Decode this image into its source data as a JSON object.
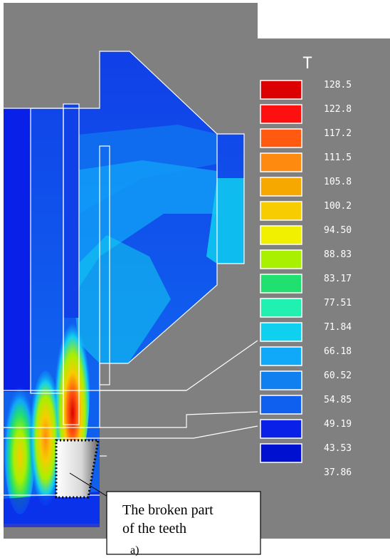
{
  "figure": {
    "caption": "a)",
    "background_color": "#808080",
    "contour_outline_color": "#ffffff"
  },
  "legend": {
    "title": "T",
    "entries": [
      {
        "value": "128.5",
        "color": "#dc0000"
      },
      {
        "value": "122.8",
        "color": "#ff1010"
      },
      {
        "value": "117.2",
        "color": "#ff5a10"
      },
      {
        "value": "111.5",
        "color": "#ff8a10"
      },
      {
        "value": "105.8",
        "color": "#f7a800"
      },
      {
        "value": "100.2",
        "color": "#f7cc00"
      },
      {
        "value": "94.50",
        "color": "#f0f000"
      },
      {
        "value": "88.83",
        "color": "#a8f000"
      },
      {
        "value": "83.17",
        "color": "#20e070"
      },
      {
        "value": "77.51",
        "color": "#20f0b0"
      },
      {
        "value": "71.84",
        "color": "#10d0f0"
      },
      {
        "value": "66.18",
        "color": "#10a8f8"
      },
      {
        "value": "60.52",
        "color": "#1080f0"
      },
      {
        "value": "54.85",
        "color": "#1060f0"
      },
      {
        "value": "49.19",
        "color": "#0820e8"
      },
      {
        "value": "43.53",
        "color": "#0010d0"
      },
      {
        "value": "37.86",
        "color": null
      }
    ]
  },
  "callout": {
    "line1": "The broken part",
    "line2": "of the teeth"
  }
}
